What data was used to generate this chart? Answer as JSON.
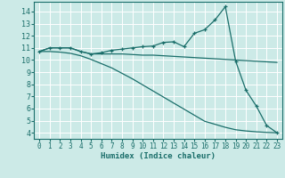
{
  "xlabel": "Humidex (Indice chaleur)",
  "xlim": [
    -0.5,
    23.5
  ],
  "ylim": [
    3.5,
    14.8
  ],
  "yticks": [
    4,
    5,
    6,
    7,
    8,
    9,
    10,
    11,
    12,
    13,
    14
  ],
  "xticks": [
    0,
    1,
    2,
    3,
    4,
    5,
    6,
    7,
    8,
    9,
    10,
    11,
    12,
    13,
    14,
    15,
    16,
    17,
    18,
    19,
    20,
    21,
    22,
    23
  ],
  "bg_color": "#cceae7",
  "grid_color": "#ffffff",
  "line_color": "#1a6e6a",
  "line1_x": [
    0,
    1,
    2,
    3,
    4,
    5,
    6,
    7,
    8,
    9,
    10,
    11,
    12,
    13,
    14,
    15,
    16,
    17,
    18,
    19,
    20,
    21,
    22,
    23
  ],
  "line1_y": [
    10.7,
    11.0,
    11.0,
    11.0,
    10.7,
    10.5,
    10.6,
    10.8,
    10.9,
    11.0,
    11.1,
    11.15,
    11.45,
    11.5,
    11.1,
    12.2,
    12.5,
    13.3,
    14.4,
    9.9,
    7.5,
    6.2,
    4.6,
    4.0
  ],
  "line2_x": [
    0,
    1,
    2,
    3,
    4,
    5,
    6,
    7,
    8,
    9,
    10,
    11,
    12,
    13,
    14,
    15,
    16,
    17,
    18,
    19,
    20,
    21,
    22,
    23
  ],
  "line2_y": [
    10.7,
    11.0,
    11.0,
    11.0,
    10.7,
    10.5,
    10.5,
    10.5,
    10.5,
    10.45,
    10.4,
    10.4,
    10.35,
    10.3,
    10.25,
    10.2,
    10.15,
    10.1,
    10.05,
    10.0,
    9.95,
    9.9,
    9.85,
    9.8
  ],
  "line3_x": [
    0,
    1,
    2,
    3,
    4,
    5,
    6,
    7,
    8,
    9,
    10,
    11,
    12,
    13,
    14,
    15,
    16,
    17,
    18,
    19,
    20,
    21,
    22,
    23
  ],
  "line3_y": [
    10.7,
    10.7,
    10.65,
    10.55,
    10.35,
    10.05,
    9.7,
    9.35,
    8.9,
    8.45,
    7.95,
    7.45,
    6.95,
    6.45,
    5.95,
    5.45,
    4.95,
    4.7,
    4.45,
    4.25,
    4.15,
    4.08,
    4.03,
    4.0
  ]
}
